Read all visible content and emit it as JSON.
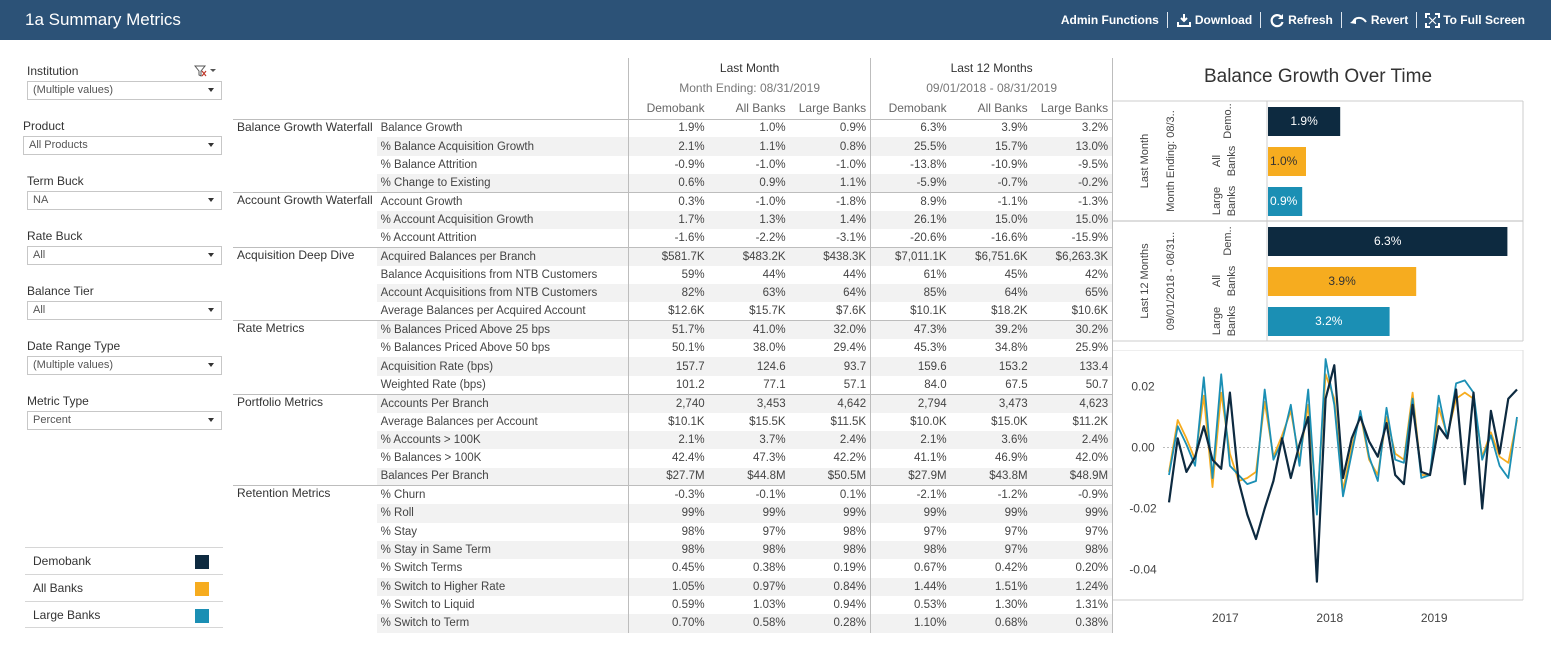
{
  "header": {
    "title": "1a Summary Metrics",
    "toolbar": {
      "admin": "Admin Functions",
      "download": "Download",
      "refresh": "Refresh",
      "revert": "Revert",
      "fullscreen": "To Full Screen"
    }
  },
  "filters": [
    {
      "label": "Institution",
      "value": "(Multiple values)"
    },
    {
      "label": "Product",
      "value": "All Products"
    },
    {
      "label": "Term Buck",
      "value": "NA"
    },
    {
      "label": "Rate Buck",
      "value": "All"
    },
    {
      "label": "Balance Tier",
      "value": "All"
    },
    {
      "label": "Date Range Type",
      "value": "(Multiple values)"
    },
    {
      "label": "Metric Type",
      "value": "Percent"
    }
  ],
  "legend": [
    {
      "label": "Demobank",
      "color": "#0d2a40"
    },
    {
      "label": "All Banks",
      "color": "#f6ac1f"
    },
    {
      "label": "Large Banks",
      "color": "#1b8fb4"
    }
  ],
  "table": {
    "groups": [
      {
        "label": "Last Month",
        "sub": "Month Ending: 08/31/2019"
      },
      {
        "label": "Last 12 Months",
        "sub": "09/01/2018 - 08/31/2019"
      }
    ],
    "columns": [
      "Demobank",
      "All Banks",
      "Large Banks",
      "Demobank",
      "All Banks",
      "Large Banks"
    ],
    "sections": [
      {
        "category": "Balance Growth Waterfall",
        "rows": [
          {
            "metric": "Balance Growth",
            "values": [
              "1.9%",
              "1.0%",
              "0.9%",
              "6.3%",
              "3.9%",
              "3.2%"
            ]
          },
          {
            "metric": "% Balance Acquisition Growth",
            "values": [
              "2.1%",
              "1.1%",
              "0.8%",
              "25.5%",
              "15.7%",
              "13.0%"
            ]
          },
          {
            "metric": "% Balance Attrition",
            "values": [
              "-0.9%",
              "-1.0%",
              "-1.0%",
              "-13.8%",
              "-10.9%",
              "-9.5%"
            ]
          },
          {
            "metric": "% Change to Existing",
            "values": [
              "0.6%",
              "0.9%",
              "1.1%",
              "-5.9%",
              "-0.7%",
              "-0.2%"
            ]
          }
        ]
      },
      {
        "category": "Account Growth Waterfall",
        "rows": [
          {
            "metric": "Account Growth",
            "values": [
              "0.3%",
              "-1.0%",
              "-1.8%",
              "8.9%",
              "-1.1%",
              "-1.3%"
            ]
          },
          {
            "metric": "% Account Acquisition Growth",
            "values": [
              "1.7%",
              "1.3%",
              "1.4%",
              "26.1%",
              "15.0%",
              "15.0%"
            ]
          },
          {
            "metric": "% Account Attrition",
            "values": [
              "-1.6%",
              "-2.2%",
              "-3.1%",
              "-20.6%",
              "-16.6%",
              "-15.9%"
            ]
          }
        ]
      },
      {
        "category": "Acquisition Deep Dive",
        "rows": [
          {
            "metric": "Acquired Balances per Branch",
            "values": [
              "$581.7K",
              "$483.2K",
              "$438.3K",
              "$7,011.1K",
              "$6,751.6K",
              "$6,263.3K"
            ]
          },
          {
            "metric": "Balance Acquisitions from NTB Customers",
            "values": [
              "59%",
              "44%",
              "44%",
              "61%",
              "45%",
              "42%"
            ]
          },
          {
            "metric": "Account Acquisitions from NTB Customers",
            "values": [
              "82%",
              "63%",
              "64%",
              "85%",
              "64%",
              "65%"
            ]
          },
          {
            "metric": "Average Balances per Acquired Account",
            "values": [
              "$12.6K",
              "$15.7K",
              "$7.6K",
              "$10.1K",
              "$18.2K",
              "$10.6K"
            ]
          }
        ]
      },
      {
        "category": "Rate Metrics",
        "rows": [
          {
            "metric": "% Balances Priced Above 25 bps",
            "values": [
              "51.7%",
              "41.0%",
              "32.0%",
              "47.3%",
              "39.2%",
              "30.2%"
            ]
          },
          {
            "metric": "% Balances Priced Above 50 bps",
            "values": [
              "50.1%",
              "38.0%",
              "29.4%",
              "45.3%",
              "34.8%",
              "25.9%"
            ]
          },
          {
            "metric": "Acquisition Rate (bps)",
            "values": [
              "157.7",
              "124.6",
              "93.7",
              "159.6",
              "153.2",
              "133.4"
            ]
          },
          {
            "metric": "Weighted Rate (bps)",
            "values": [
              "101.2",
              "77.1",
              "57.1",
              "84.0",
              "67.5",
              "50.7"
            ]
          }
        ]
      },
      {
        "category": "Portfolio Metrics",
        "rows": [
          {
            "metric": "Accounts Per Branch",
            "values": [
              "2,740",
              "3,453",
              "4,642",
              "2,794",
              "3,473",
              "4,623"
            ]
          },
          {
            "metric": "Average Balances per Account",
            "values": [
              "$10.1K",
              "$15.5K",
              "$11.5K",
              "$10.0K",
              "$15.0K",
              "$11.2K"
            ]
          },
          {
            "metric": "% Accounts > 100K",
            "values": [
              "2.1%",
              "3.7%",
              "2.4%",
              "2.1%",
              "3.6%",
              "2.4%"
            ]
          },
          {
            "metric": "% Balances > 100K",
            "values": [
              "42.4%",
              "47.3%",
              "42.2%",
              "41.1%",
              "46.9%",
              "42.0%"
            ]
          },
          {
            "metric": "Balances Per Branch",
            "values": [
              "$27.7M",
              "$44.8M",
              "$50.5M",
              "$27.9M",
              "$43.8M",
              "$48.9M"
            ]
          }
        ]
      },
      {
        "category": "Retention Metrics",
        "rows": [
          {
            "metric": "% Churn",
            "values": [
              "-0.3%",
              "-0.1%",
              "0.1%",
              "-2.1%",
              "-1.2%",
              "-0.9%"
            ]
          },
          {
            "metric": "% Roll",
            "values": [
              "99%",
              "99%",
              "99%",
              "99%",
              "99%",
              "99%"
            ]
          },
          {
            "metric": "% Stay",
            "values": [
              "98%",
              "97%",
              "98%",
              "97%",
              "97%",
              "97%"
            ]
          },
          {
            "metric": "% Stay in Same Term",
            "values": [
              "98%",
              "98%",
              "98%",
              "98%",
              "97%",
              "98%"
            ]
          },
          {
            "metric": "% Switch Terms",
            "values": [
              "0.45%",
              "0.38%",
              "0.19%",
              "0.67%",
              "0.42%",
              "0.20%"
            ]
          },
          {
            "metric": "% Switch to Higher Rate",
            "values": [
              "1.05%",
              "0.97%",
              "0.84%",
              "1.44%",
              "1.51%",
              "1.24%"
            ]
          },
          {
            "metric": "% Switch to Liquid",
            "values": [
              "0.59%",
              "1.03%",
              "0.94%",
              "0.53%",
              "1.30%",
              "1.31%"
            ]
          },
          {
            "metric": "% Switch to Term",
            "values": [
              "0.70%",
              "0.58%",
              "0.28%",
              "1.10%",
              "0.68%",
              "0.38%"
            ]
          }
        ]
      }
    ]
  },
  "chart_data": [
    {
      "type": "bar",
      "title": "Balance Growth Over Time",
      "orientation": "horizontal",
      "panels": [
        {
          "label": "Last Month",
          "sublabel": "Month Ending: 08/3..",
          "categories": [
            "Demo..",
            "All Banks",
            "Large Banks"
          ],
          "values": [
            1.9,
            1.0,
            0.9
          ],
          "value_labels": [
            "1.9%",
            "1.0%",
            "0.9%"
          ]
        },
        {
          "label": "Last 12 Months",
          "sublabel": "09/01/2018 - 08/31..",
          "categories": [
            "Dem..",
            "All Banks",
            "Large Banks"
          ],
          "values": [
            6.3,
            3.9,
            3.2
          ],
          "value_labels": [
            "6.3%",
            "3.9%",
            "3.2%"
          ]
        }
      ],
      "colors": [
        "#0d2a40",
        "#f6ac1f",
        "#1b8fb4"
      ]
    },
    {
      "type": "line",
      "xlabel": "",
      "ylabel": "",
      "ylim": [
        -0.05,
        0.03
      ],
      "yticks": [
        0.02,
        0.0,
        -0.02,
        -0.04
      ],
      "ytick_labels": [
        "0.02",
        "0.00",
        "-0.02",
        "-0.04"
      ],
      "xticks": [
        "2017",
        "2018",
        "2019"
      ],
      "x_start": 2016.5,
      "x_step_years": 0.08333,
      "series": [
        {
          "name": "Demobank",
          "color": "#0d2a40",
          "values": [
            -0.018,
            0.003,
            -0.008,
            -0.003,
            0.007,
            -0.004,
            -0.007,
            0.018,
            -0.011,
            -0.022,
            -0.03,
            -0.02,
            -0.011,
            0.003,
            -0.01,
            0.001,
            0.01,
            -0.044,
            0.016,
            0.027,
            -0.01,
            0.003,
            0.01,
            0.002,
            -0.003,
            0.008,
            -0.009,
            -0.012,
            0.014,
            -0.008,
            -0.009,
            0.007,
            0.003,
            0.019,
            -0.012,
            0.018,
            -0.02,
            0.012,
            -0.002,
            0.016,
            0.019
          ]
        },
        {
          "name": "All Banks",
          "color": "#f6ac1f",
          "values": [
            -0.008,
            0.009,
            0.003,
            -0.004,
            0.017,
            -0.013,
            0.018,
            -0.002,
            -0.011,
            -0.01,
            -0.008,
            0.015,
            -0.003,
            0.004,
            0.012,
            -0.004,
            0.014,
            -0.02,
            0.024,
            0.016,
            -0.014,
            0.0,
            0.011,
            -0.004,
            -0.009,
            0.01,
            -0.002,
            -0.004,
            0.018,
            -0.009,
            -0.009,
            0.013,
            0.004,
            0.016,
            0.018,
            0.016,
            -0.003,
            0.005,
            -0.003,
            -0.005,
            0.009
          ]
        },
        {
          "name": "Large Banks",
          "color": "#1b8fb4",
          "values": [
            -0.009,
            0.007,
            0.001,
            -0.006,
            0.023,
            -0.01,
            0.024,
            -0.006,
            -0.009,
            -0.012,
            -0.011,
            0.019,
            -0.004,
            0.002,
            0.014,
            -0.006,
            0.019,
            -0.022,
            0.029,
            0.014,
            -0.016,
            -0.002,
            0.012,
            -0.003,
            -0.011,
            0.013,
            -0.004,
            -0.005,
            0.016,
            -0.01,
            -0.009,
            0.017,
            0.003,
            0.021,
            0.022,
            0.018,
            -0.004,
            0.004,
            -0.006,
            -0.01,
            0.01
          ]
        }
      ]
    }
  ]
}
